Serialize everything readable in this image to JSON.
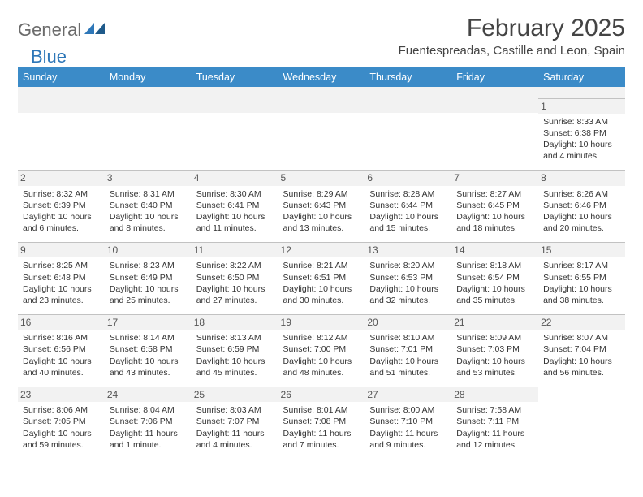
{
  "logo": {
    "part1": "General",
    "part2": "Blue"
  },
  "title": "February 2025",
  "location": "Fuentespreadas, Castille and Leon, Spain",
  "day_headers": [
    "Sunday",
    "Monday",
    "Tuesday",
    "Wednesday",
    "Thursday",
    "Friday",
    "Saturday"
  ],
  "colors": {
    "header_bg": "#3b8bc8",
    "header_text": "#ffffff",
    "logo_gray": "#6b6b6b",
    "logo_blue": "#2e77b8",
    "border": "#c2c2c2",
    "alt_bg": "#f2f2f2"
  },
  "weeks": [
    [
      null,
      null,
      null,
      null,
      null,
      null,
      {
        "n": "1",
        "sr": "Sunrise: 8:33 AM",
        "ss": "Sunset: 6:38 PM",
        "d1": "Daylight: 10 hours",
        "d2": "and 4 minutes."
      }
    ],
    [
      {
        "n": "2",
        "sr": "Sunrise: 8:32 AM",
        "ss": "Sunset: 6:39 PM",
        "d1": "Daylight: 10 hours",
        "d2": "and 6 minutes."
      },
      {
        "n": "3",
        "sr": "Sunrise: 8:31 AM",
        "ss": "Sunset: 6:40 PM",
        "d1": "Daylight: 10 hours",
        "d2": "and 8 minutes."
      },
      {
        "n": "4",
        "sr": "Sunrise: 8:30 AM",
        "ss": "Sunset: 6:41 PM",
        "d1": "Daylight: 10 hours",
        "d2": "and 11 minutes."
      },
      {
        "n": "5",
        "sr": "Sunrise: 8:29 AM",
        "ss": "Sunset: 6:43 PM",
        "d1": "Daylight: 10 hours",
        "d2": "and 13 minutes."
      },
      {
        "n": "6",
        "sr": "Sunrise: 8:28 AM",
        "ss": "Sunset: 6:44 PM",
        "d1": "Daylight: 10 hours",
        "d2": "and 15 minutes."
      },
      {
        "n": "7",
        "sr": "Sunrise: 8:27 AM",
        "ss": "Sunset: 6:45 PM",
        "d1": "Daylight: 10 hours",
        "d2": "and 18 minutes."
      },
      {
        "n": "8",
        "sr": "Sunrise: 8:26 AM",
        "ss": "Sunset: 6:46 PM",
        "d1": "Daylight: 10 hours",
        "d2": "and 20 minutes."
      }
    ],
    [
      {
        "n": "9",
        "sr": "Sunrise: 8:25 AM",
        "ss": "Sunset: 6:48 PM",
        "d1": "Daylight: 10 hours",
        "d2": "and 23 minutes."
      },
      {
        "n": "10",
        "sr": "Sunrise: 8:23 AM",
        "ss": "Sunset: 6:49 PM",
        "d1": "Daylight: 10 hours",
        "d2": "and 25 minutes."
      },
      {
        "n": "11",
        "sr": "Sunrise: 8:22 AM",
        "ss": "Sunset: 6:50 PM",
        "d1": "Daylight: 10 hours",
        "d2": "and 27 minutes."
      },
      {
        "n": "12",
        "sr": "Sunrise: 8:21 AM",
        "ss": "Sunset: 6:51 PM",
        "d1": "Daylight: 10 hours",
        "d2": "and 30 minutes."
      },
      {
        "n": "13",
        "sr": "Sunrise: 8:20 AM",
        "ss": "Sunset: 6:53 PM",
        "d1": "Daylight: 10 hours",
        "d2": "and 32 minutes."
      },
      {
        "n": "14",
        "sr": "Sunrise: 8:18 AM",
        "ss": "Sunset: 6:54 PM",
        "d1": "Daylight: 10 hours",
        "d2": "and 35 minutes."
      },
      {
        "n": "15",
        "sr": "Sunrise: 8:17 AM",
        "ss": "Sunset: 6:55 PM",
        "d1": "Daylight: 10 hours",
        "d2": "and 38 minutes."
      }
    ],
    [
      {
        "n": "16",
        "sr": "Sunrise: 8:16 AM",
        "ss": "Sunset: 6:56 PM",
        "d1": "Daylight: 10 hours",
        "d2": "and 40 minutes."
      },
      {
        "n": "17",
        "sr": "Sunrise: 8:14 AM",
        "ss": "Sunset: 6:58 PM",
        "d1": "Daylight: 10 hours",
        "d2": "and 43 minutes."
      },
      {
        "n": "18",
        "sr": "Sunrise: 8:13 AM",
        "ss": "Sunset: 6:59 PM",
        "d1": "Daylight: 10 hours",
        "d2": "and 45 minutes."
      },
      {
        "n": "19",
        "sr": "Sunrise: 8:12 AM",
        "ss": "Sunset: 7:00 PM",
        "d1": "Daylight: 10 hours",
        "d2": "and 48 minutes."
      },
      {
        "n": "20",
        "sr": "Sunrise: 8:10 AM",
        "ss": "Sunset: 7:01 PM",
        "d1": "Daylight: 10 hours",
        "d2": "and 51 minutes."
      },
      {
        "n": "21",
        "sr": "Sunrise: 8:09 AM",
        "ss": "Sunset: 7:03 PM",
        "d1": "Daylight: 10 hours",
        "d2": "and 53 minutes."
      },
      {
        "n": "22",
        "sr": "Sunrise: 8:07 AM",
        "ss": "Sunset: 7:04 PM",
        "d1": "Daylight: 10 hours",
        "d2": "and 56 minutes."
      }
    ],
    [
      {
        "n": "23",
        "sr": "Sunrise: 8:06 AM",
        "ss": "Sunset: 7:05 PM",
        "d1": "Daylight: 10 hours",
        "d2": "and 59 minutes."
      },
      {
        "n": "24",
        "sr": "Sunrise: 8:04 AM",
        "ss": "Sunset: 7:06 PM",
        "d1": "Daylight: 11 hours",
        "d2": "and 1 minute."
      },
      {
        "n": "25",
        "sr": "Sunrise: 8:03 AM",
        "ss": "Sunset: 7:07 PM",
        "d1": "Daylight: 11 hours",
        "d2": "and 4 minutes."
      },
      {
        "n": "26",
        "sr": "Sunrise: 8:01 AM",
        "ss": "Sunset: 7:08 PM",
        "d1": "Daylight: 11 hours",
        "d2": "and 7 minutes."
      },
      {
        "n": "27",
        "sr": "Sunrise: 8:00 AM",
        "ss": "Sunset: 7:10 PM",
        "d1": "Daylight: 11 hours",
        "d2": "and 9 minutes."
      },
      {
        "n": "28",
        "sr": "Sunrise: 7:58 AM",
        "ss": "Sunset: 7:11 PM",
        "d1": "Daylight: 11 hours",
        "d2": "and 12 minutes."
      },
      null
    ]
  ]
}
